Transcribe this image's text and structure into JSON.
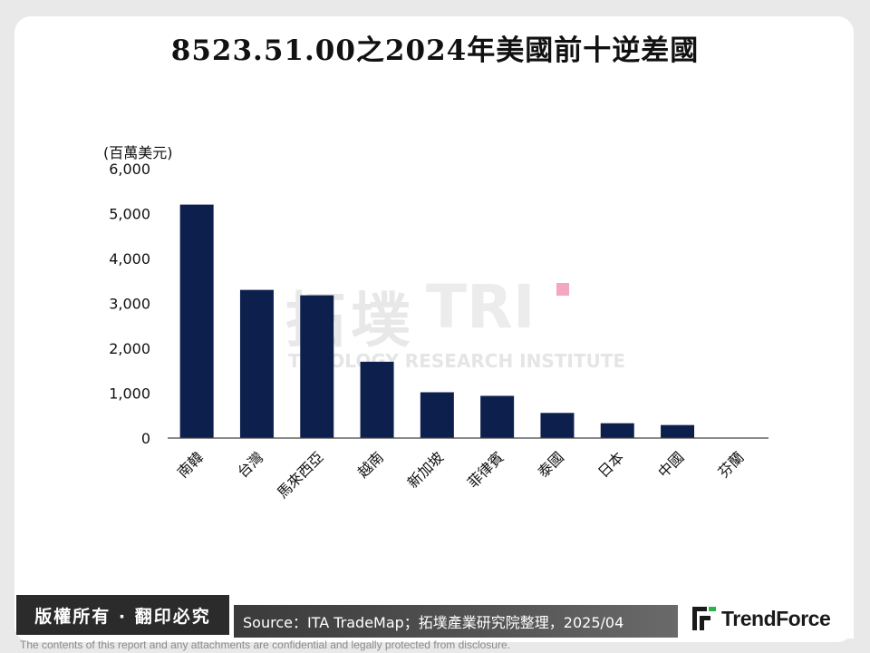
{
  "title": "8523.51.00之2024年美國前十逆差國",
  "unit_label": "(百萬美元)",
  "watermark": {
    "zh": "拓墣",
    "mark": "TRI",
    "en": "TOPOLOGY RESEARCH INSTITUTE"
  },
  "chart_data": {
    "type": "bar",
    "categories": [
      "南韓",
      "台灣",
      "馬來西亞",
      "越南",
      "新加坡",
      "菲律賓",
      "泰國",
      "日本",
      "中國",
      "芬蘭"
    ],
    "values": [
      5200,
      3300,
      3180,
      1700,
      1020,
      940,
      560,
      330,
      290,
      0
    ],
    "title": "8523.51.00之2024年美國前十逆差國",
    "ylabel": "(百萬美元)",
    "ylim": [
      0,
      6000
    ],
    "yticks": [
      0,
      1000,
      2000,
      3000,
      4000,
      5000,
      6000
    ],
    "ytick_labels": [
      "0",
      "1,000",
      "2,000",
      "3,000",
      "4,000",
      "5,000",
      "6,000"
    ],
    "bar_color": "#0d1f4d",
    "grid": false
  },
  "footer": {
    "copyright": "版權所有 · 翻印必究",
    "source": "Source：ITA TradeMap；拓墣產業研究院整理，2025/04",
    "brand": "TrendForce",
    "disclaimer": "The contents of this report and any attachments are confidential and legally protected from disclosure."
  },
  "colors": {
    "accent_pink": "#f4a7c0",
    "footer_dark": "#2b2b2b"
  }
}
